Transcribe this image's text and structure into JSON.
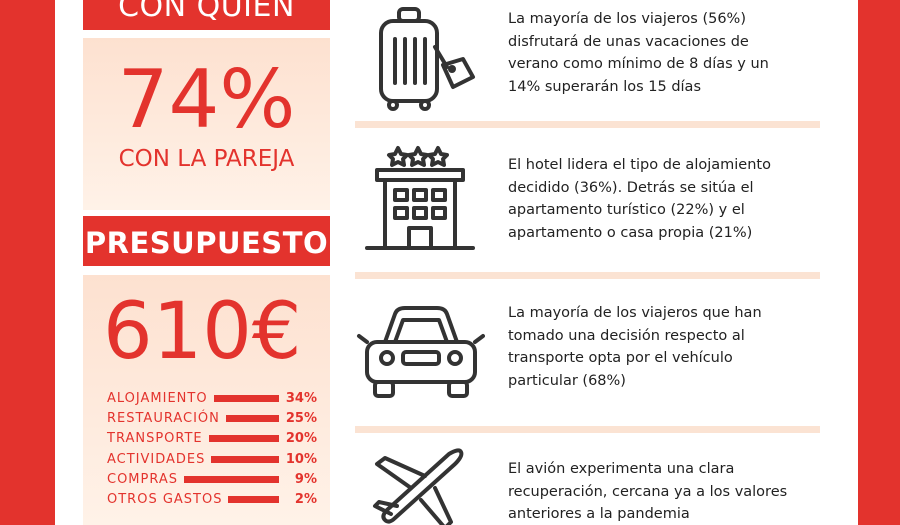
{
  "left": {
    "who_title": "CON QUIÉN",
    "who_value": "74%",
    "who_label": "CON LA PAREJA",
    "budget_title": "PRESUPUESTO",
    "budget_value": "610€",
    "budget_items": [
      {
        "label": "ALOJAMIENTO",
        "value": "34%",
        "pct": 34
      },
      {
        "label": "RESTAURACIÓN",
        "value": "25%",
        "pct": 25
      },
      {
        "label": "TRANSPORTE",
        "value": "20%",
        "pct": 20
      },
      {
        "label": "ACTIVIDADES",
        "value": "10%",
        "pct": 10
      },
      {
        "label": "COMPRAS",
        "value": "9%",
        "pct": 9
      },
      {
        "label": "OTROS GASTOS",
        "value": "2%",
        "pct": 2
      }
    ]
  },
  "right": {
    "items": [
      {
        "icon": "suitcase-icon",
        "lines": [
          "La mayoría de los viajeros (56%)",
          "disfrutará de unas vacaciones de",
          "verano como mínimo de 8 días y un",
          "14% superarán los 15 días"
        ]
      },
      {
        "icon": "hotel-icon",
        "lines": [
          "El hotel lidera el tipo de alojamiento",
          "decidido (36%). Detrás se sitúa el",
          "apartamento turístico (22%) y el",
          "apartamento o casa propia (21%)"
        ]
      },
      {
        "icon": "car-icon",
        "lines": [
          "La mayoría de los viajeros que han",
          "tomado una decisión respecto al",
          "transporte opta por el vehículo",
          "particular (68%)"
        ]
      },
      {
        "icon": "airplane-icon",
        "lines": [
          "El avión experimenta una clara",
          "recuperación, cercana ya a los valores",
          "anteriores a la pandemia"
        ]
      }
    ]
  },
  "colors": {
    "accent": "#e3332d",
    "peach": "#fde1d0"
  }
}
